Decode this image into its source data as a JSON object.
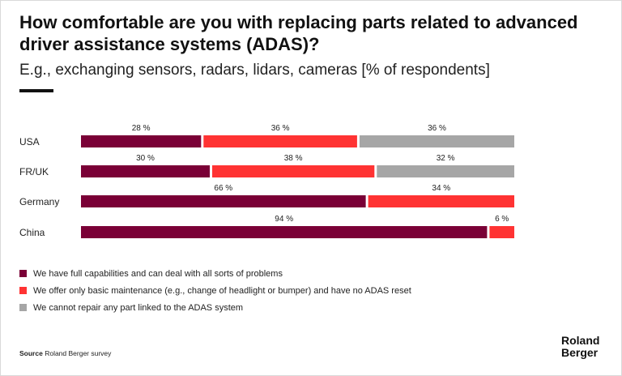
{
  "header": {
    "title": "How comfortable are you with replacing parts related to advanced driver assistance systems (ADAS)?",
    "subtitle": "E.g., exchanging sensors, radars, lidars, cameras [% of respondents]"
  },
  "chart_data": {
    "type": "bar",
    "orientation": "horizontal",
    "stacked": true,
    "categories": [
      "USA",
      "FR/UK",
      "Germany",
      "China"
    ],
    "series": [
      {
        "name": "We have full capabilities and can deal with all sorts of problems",
        "color": "#7a0036",
        "values": [
          28,
          30,
          66,
          94
        ]
      },
      {
        "name": "We offer only basic maintenance (e.g., change of headlight or bumper) and have no ADAS reset",
        "color": "#ff3333",
        "values": [
          36,
          38,
          34,
          6
        ]
      },
      {
        "name": "We cannot repair any part linked to the ADAS system",
        "color": "#a6a6a6",
        "values": [
          36,
          32,
          0,
          0
        ]
      }
    ],
    "value_suffix": "%",
    "xlim": [
      0,
      100
    ],
    "grid": false,
    "legend_position": "bottom-left"
  },
  "footer": {
    "source_label": "Source",
    "source_text": "Roland Berger survey",
    "logo_line1": "Roland",
    "logo_line2": "Berger"
  }
}
